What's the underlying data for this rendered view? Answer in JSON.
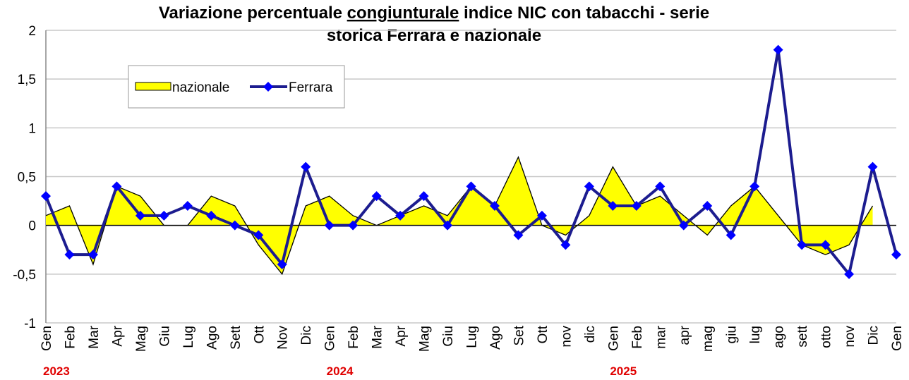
{
  "chart_data": {
    "type": "line",
    "title": {
      "line1": [
        "Variazione percentuale ",
        "congiunturale",
        " indice NIC con tabacchi - serie"
      ],
      "line2": "storica Ferrara e nazionale"
    },
    "categories": [
      "Gen",
      "Feb",
      "Mar",
      "Apr",
      "Mag",
      "Giu",
      "Lug",
      "Ago",
      "Sett",
      "Ott",
      "Nov",
      "Dic",
      "Gen",
      "Feb",
      "Mar",
      "Apr",
      "Mag",
      "Giu",
      "Lug",
      "Ago",
      "Set",
      "Ott",
      "nov",
      "dic",
      "Gen",
      "Feb",
      "mar",
      "apr",
      "mag",
      "giu",
      "lug",
      "ago",
      "sett",
      "otto",
      "nov",
      "Dic",
      "Gen"
    ],
    "year_labels": [
      {
        "index": 0,
        "label": "2023"
      },
      {
        "index": 12,
        "label": "2024"
      },
      {
        "index": 24,
        "label": "2025"
      }
    ],
    "series": [
      {
        "name": "nazionale",
        "kind": "area",
        "color": "#ffff00",
        "outline": "#000000",
        "values": [
          0.1,
          0.2,
          -0.4,
          0.4,
          0.3,
          0.0,
          0.0,
          0.3,
          0.2,
          -0.2,
          -0.5,
          0.2,
          0.3,
          0.1,
          0.0,
          0.1,
          0.2,
          0.1,
          0.4,
          0.2,
          0.7,
          0.0,
          -0.1,
          0.1,
          0.6,
          0.2,
          0.3,
          0.1,
          -0.1,
          0.2,
          0.4,
          0.1,
          -0.2,
          -0.3,
          -0.2,
          0.2,
          null
        ]
      },
      {
        "name": "Ferrara",
        "kind": "line",
        "color": "#1c1c8f",
        "marker_color": "#0000ff",
        "values": [
          0.3,
          -0.3,
          -0.3,
          0.4,
          0.1,
          0.1,
          0.2,
          0.1,
          0.0,
          -0.1,
          -0.4,
          0.6,
          0.0,
          0.0,
          0.3,
          0.1,
          0.3,
          0.0,
          0.4,
          0.2,
          -0.1,
          0.1,
          -0.2,
          0.4,
          0.2,
          0.2,
          0.4,
          0.0,
          0.2,
          -0.1,
          0.4,
          1.8,
          -0.2,
          -0.2,
          -0.5,
          0.6,
          -0.3
        ]
      }
    ],
    "ylim": [
      -1,
      2
    ],
    "yticks": [
      -1,
      {
        "value": -0.5,
        "label": "-0,5"
      },
      0,
      {
        "value": 0.5,
        "label": "0,5"
      },
      1,
      {
        "value": 1.5,
        "label": "1,5"
      },
      2
    ],
    "grid": true,
    "legend": "top-left"
  }
}
